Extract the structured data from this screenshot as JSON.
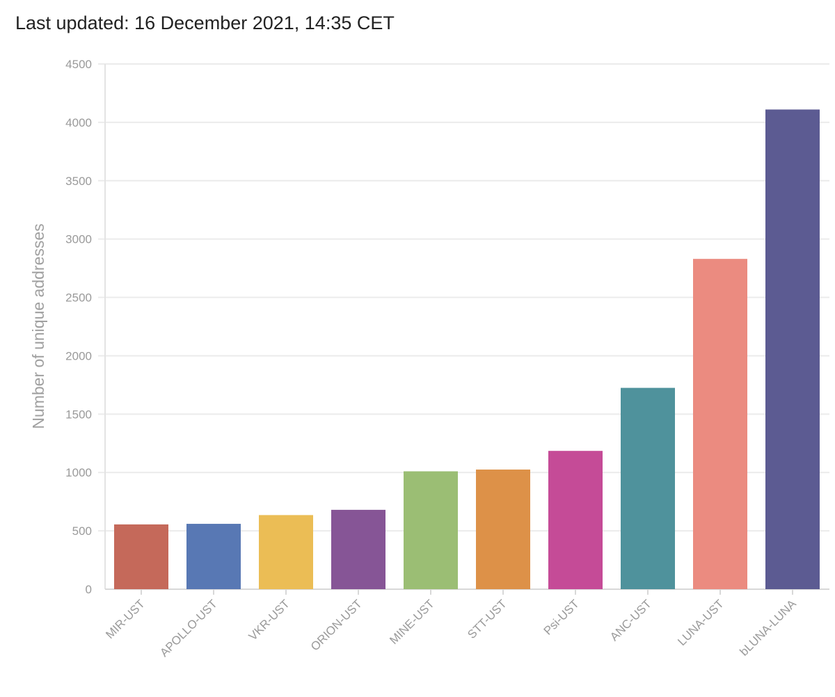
{
  "header": {
    "last_updated": "Last updated: 16 December 2021, 14:35 CET"
  },
  "chart_data": {
    "type": "bar",
    "ylabel": "Number of unique addresses",
    "xlabel": "",
    "ylim": [
      0,
      4500
    ],
    "yticks": [
      "0",
      "500",
      "1000",
      "1500",
      "2000",
      "2500",
      "3000",
      "3500",
      "4000",
      "4500"
    ],
    "grid": true,
    "categories": [
      "MIR-UST",
      "APOLLO-UST",
      "VKR-UST",
      "ORION-UST",
      "MINE-UST",
      "STT-UST",
      "Psi-UST",
      "ANC-UST",
      "LUNA-UST",
      "bLUNA-LUNA"
    ],
    "values": [
      555,
      560,
      635,
      680,
      1010,
      1025,
      1185,
      1725,
      2830,
      4110
    ],
    "colors": [
      "#c5695a",
      "#5878b4",
      "#ebbd55",
      "#865596",
      "#9bbe74",
      "#dd9148",
      "#c54b97",
      "#4f929c",
      "#eb8b80",
      "#5c5b92"
    ]
  }
}
